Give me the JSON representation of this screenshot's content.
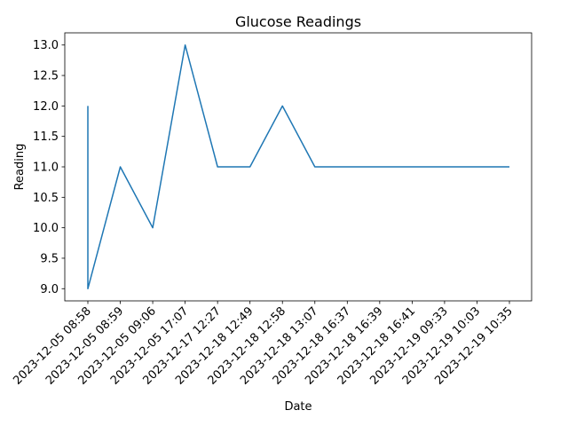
{
  "chart_data": {
    "type": "line",
    "title": "Glucose Readings",
    "xlabel": "Date",
    "ylabel": "Reading",
    "ylim": [
      8.8,
      13.2
    ],
    "yticks": [
      9.0,
      9.5,
      10.0,
      10.5,
      11.0,
      11.5,
      12.0,
      12.5,
      13.0
    ],
    "ytick_labels": [
      "9.0",
      "9.5",
      "10.0",
      "10.5",
      "11.0",
      "11.5",
      "12.0",
      "12.5",
      "13.0"
    ],
    "categories": [
      "2023-12-05 08:58",
      "2023-12-05 08:59",
      "2023-12-05 09:06",
      "2023-12-05 17:07",
      "2023-12-17 12:27",
      "2023-12-18 12:49",
      "2023-12-18 12:58",
      "2023-12-18 13:07",
      "2023-12-18 16:37",
      "2023-12-18 16:39",
      "2023-12-18 16:41",
      "2023-12-19 09:33",
      "2023-12-19 10:03",
      "2023-12-19 10:35"
    ],
    "points": [
      {
        "x": "2023-12-05 08:58",
        "y": 12.0
      },
      {
        "x": "2023-12-05 08:58",
        "y": 9.0
      },
      {
        "x": "2023-12-05 08:59",
        "y": 11.0
      },
      {
        "x": "2023-12-05 09:06",
        "y": 10.0
      },
      {
        "x": "2023-12-05 17:07",
        "y": 13.0
      },
      {
        "x": "2023-12-17 12:27",
        "y": 11.0
      },
      {
        "x": "2023-12-18 12:49",
        "y": 11.0
      },
      {
        "x": "2023-12-18 12:58",
        "y": 12.0
      },
      {
        "x": "2023-12-18 13:07",
        "y": 11.0
      },
      {
        "x": "2023-12-18 16:37",
        "y": 11.0
      },
      {
        "x": "2023-12-18 16:39",
        "y": 11.0
      },
      {
        "x": "2023-12-18 16:41",
        "y": 11.0
      },
      {
        "x": "2023-12-19 09:33",
        "y": 11.0
      },
      {
        "x": "2023-12-19 10:03",
        "y": 11.0
      },
      {
        "x": "2023-12-19 10:35",
        "y": 11.0
      }
    ],
    "series_color": "#1f77b4",
    "grid": false,
    "legend": "none"
  }
}
